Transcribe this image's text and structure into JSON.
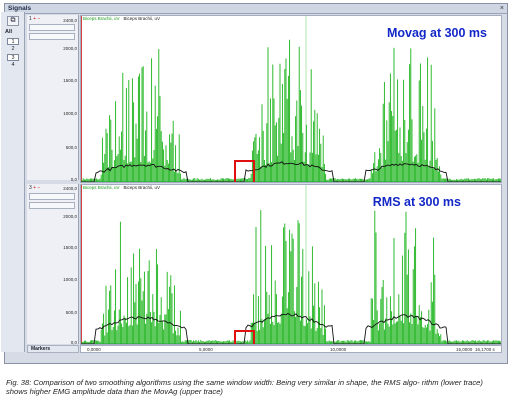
{
  "window": {
    "title": "Signals",
    "close": "×"
  },
  "left_toolbar": {
    "icon": "⧉",
    "all_label": "All",
    "channels": [
      "1",
      "2",
      "3",
      "4"
    ]
  },
  "lanes": [
    {
      "id": "movag",
      "number": "1",
      "controls": "+ −",
      "legend_green": "Biceps Brachii, uV",
      "legend_black": "Biceps Brachii, uV",
      "overlay": "Movag at 300 ms",
      "yticks": [
        "2400,0",
        "2000,0",
        "1500,0",
        "1000,0",
        "500,0",
        "0,0"
      ]
    },
    {
      "id": "rms",
      "number": "3",
      "controls": "+ −",
      "legend_green": "Biceps Brachii, uV",
      "legend_black": "Biceps Brachii, uV",
      "overlay": "RMS at 300 ms",
      "yticks": [
        "2400,0",
        "2000,0",
        "1500,0",
        "1000,0",
        "500,0",
        "0,0"
      ]
    }
  ],
  "markers_label": "Markers",
  "xaxis": {
    "ticks": [
      "0,0000",
      "5,0000",
      "10,0000",
      "15,0000"
    ],
    "end_label": "16,1700 s"
  },
  "caption": "Fig. 38: Comparison of two smoothing algorithms using the same window width: Being very similar in shape, the RMS algo- rithm (lower trace) shows higher EMG amplitude data than the MovAg (upper trace)",
  "colors": {
    "emg": "#19b319",
    "smooth": "#111111",
    "overlay": "#1428c8",
    "highlight": "#e01010"
  }
}
